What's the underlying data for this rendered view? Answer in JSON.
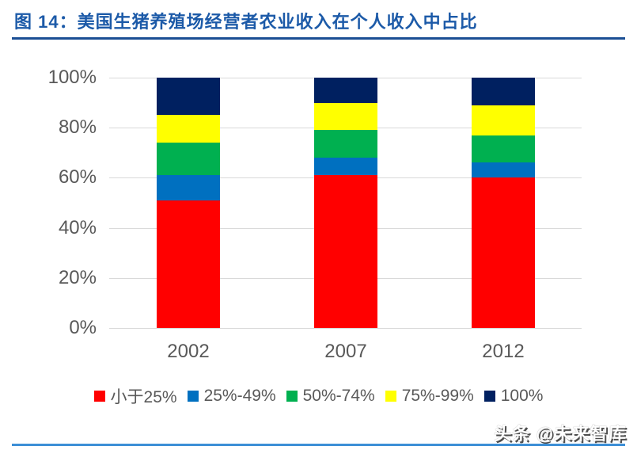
{
  "title": "图 14：美国生猪养殖场经营者农业收入在个人收入中占比",
  "watermark": "头条 @未来智库",
  "colors": {
    "title_text": "#1C5AA8",
    "title_rule": "#1B4F94",
    "axis_text": "#595959",
    "gridline": "#D9D9D9",
    "bottom_rule": "#3D8FD6"
  },
  "chart_data": {
    "type": "bar",
    "stacked": true,
    "title": "美国生猪养殖场经营者农业收入在个人收入中占比",
    "categories": [
      "2002",
      "2007",
      "2012"
    ],
    "series": [
      {
        "name": "小于25%",
        "color": "#FF0000",
        "values": [
          51,
          61,
          60
        ]
      },
      {
        "name": "25%-49%",
        "color": "#0070C0",
        "values": [
          10,
          7,
          6
        ]
      },
      {
        "name": "50%-74%",
        "color": "#00B050",
        "values": [
          13,
          11,
          11
        ]
      },
      {
        "name": "75%-99%",
        "color": "#FFFF00",
        "values": [
          11,
          11,
          12
        ]
      },
      {
        "name": "100%",
        "color": "#002060",
        "values": [
          15,
          10,
          11
        ]
      }
    ],
    "xlabel": "",
    "ylabel": "",
    "ylim": [
      0,
      100
    ],
    "yticks": [
      "0%",
      "20%",
      "40%",
      "60%",
      "80%",
      "100%"
    ],
    "grid": true,
    "legend_position": "bottom"
  }
}
